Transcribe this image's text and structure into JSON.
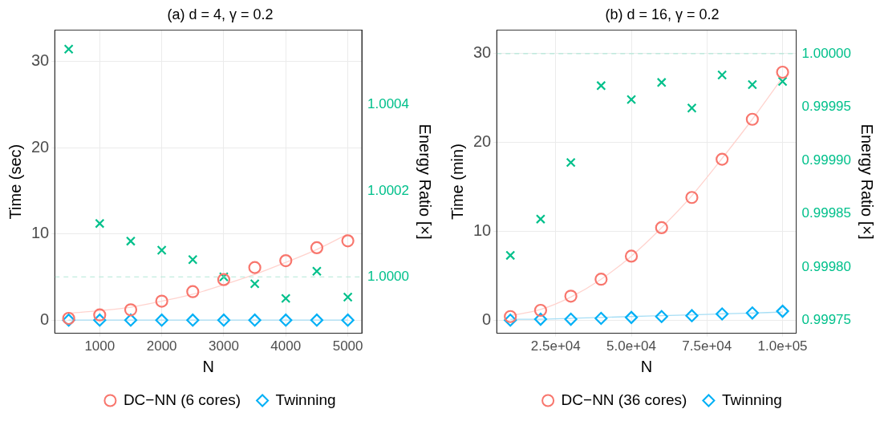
{
  "chart_data": [
    {
      "type": "scatter",
      "title": "(a) d = 4, γ = 0.2",
      "xlabel": "N",
      "ylabel": "Time (sec)",
      "y2label": "Energy Ratio [×]",
      "x": [
        500,
        1000,
        1500,
        2000,
        2500,
        3000,
        3500,
        4000,
        4500,
        5000
      ],
      "xlim": [
        275,
        5225
      ],
      "xticks": [
        1000,
        2000,
        3000,
        4000,
        5000
      ],
      "ylim": [
        -1.53,
        33.66
      ],
      "yticks": [
        0,
        10,
        20,
        30
      ],
      "y2lim": [
        0.999869,
        1.000573
      ],
      "y2ticks": [
        {
          "value": 1.0,
          "label": "1.0000"
        },
        {
          "value": 1.0002,
          "label": "1.0002"
        },
        {
          "value": 1.0004,
          "label": "1.0004"
        }
      ],
      "series": [
        {
          "type": "line",
          "color": "#ffd3ce",
          "marker": "none",
          "values": [
            0.8,
            1.1,
            1.5,
            2.2,
            3.0,
            4.1,
            5.3,
            6.7,
            8.2,
            10.0
          ]
        },
        {
          "type": "line",
          "color": "#a6def5",
          "marker": "none",
          "values": [
            0,
            0,
            0,
            0,
            0,
            0,
            0,
            0,
            0,
            0
          ]
        },
        {
          "name": "DC−NN (6 cores)",
          "color": "#f8766d",
          "marker": "circle",
          "values": [
            0.2,
            0.6,
            1.2,
            2.2,
            3.3,
            4.7,
            6.1,
            6.9,
            8.4,
            9.2
          ]
        },
        {
          "name": "Twinning",
          "color": "#00b0f6",
          "marker": "diamond",
          "values": [
            0,
            0,
            0,
            0,
            0,
            0,
            0,
            0,
            0,
            0
          ]
        },
        {
          "color": "#00c08b",
          "marker": "cross",
          "axis": "y2",
          "values": [
            1.000529,
            1.000124,
            1.000083,
            1.000062,
            1.00004,
            1.0,
            0.999984,
            0.99995,
            1.000013,
            0.999953
          ]
        }
      ],
      "ref_lines": [
        {
          "axis": "y2",
          "value": 1.0,
          "color": "#b3e8d8",
          "line_style": "dashed"
        }
      ],
      "grid": true,
      "legend": "bottom"
    },
    {
      "type": "scatter",
      "title": "(b) d = 16, γ = 0.2",
      "xlabel": "N",
      "ylabel": "Time (min)",
      "y2label": "Energy Ratio [×]",
      "x": [
        10000,
        20000,
        30000,
        40000,
        50000,
        60000,
        70000,
        80000,
        90000,
        100000
      ],
      "xlim": [
        5500,
        104500
      ],
      "xticks": [
        {
          "value": 25000,
          "label": "2.5e+04"
        },
        {
          "value": 50000,
          "label": "5.0e+04"
        },
        {
          "value": 75000,
          "label": "7.5e+04"
        },
        {
          "value": 100000,
          "label": "1.0e+05"
        }
      ],
      "ylim": [
        -1.48,
        32.63
      ],
      "yticks": [
        0,
        10,
        20,
        30
      ],
      "y2lim": [
        0.999738,
        1.000022
      ],
      "y2ticks": [
        {
          "value": 0.99975,
          "label": "0.99975"
        },
        {
          "value": 0.9998,
          "label": "0.99980"
        },
        {
          "value": 0.99985,
          "label": "0.99985"
        },
        {
          "value": 0.9999,
          "label": "0.99990"
        },
        {
          "value": 0.99995,
          "label": "0.99995"
        },
        {
          "value": 1.0,
          "label": "1.00000"
        }
      ],
      "series": [
        {
          "type": "line",
          "color": "#ffd3ce",
          "marker": "none",
          "values": [
            0.5,
            1.2,
            2.6,
            4.6,
            7.2,
            10.4,
            14.0,
            18.2,
            22.6,
            27.3
          ]
        },
        {
          "type": "line",
          "color": "#a6def5",
          "marker": "none",
          "values": [
            0.1,
            0.1,
            0.2,
            0.3,
            0.4,
            0.5,
            0.6,
            0.7,
            0.8,
            0.9
          ]
        },
        {
          "name": "DC−NN (36 cores)",
          "color": "#f8766d",
          "marker": "circle",
          "values": [
            0.4,
            1.1,
            2.7,
            4.6,
            7.2,
            10.4,
            13.8,
            18.1,
            22.6,
            27.9
          ]
        },
        {
          "name": "Twinning",
          "color": "#00b0f6",
          "marker": "diamond",
          "values": [
            0,
            0.1,
            0.1,
            0.2,
            0.3,
            0.4,
            0.5,
            0.7,
            0.8,
            1.0
          ]
        },
        {
          "color": "#00c08b",
          "marker": "cross",
          "axis": "y2",
          "values": [
            0.999811,
            0.999845,
            0.999898,
            0.99997,
            0.999957,
            0.999973,
            0.999949,
            0.99998,
            0.999971,
            0.999974
          ]
        }
      ],
      "ref_lines": [
        {
          "axis": "y2",
          "value": 1.0,
          "color": "#b3e8d8",
          "line_style": "dashed"
        }
      ],
      "grid": true,
      "legend": "bottom"
    }
  ]
}
